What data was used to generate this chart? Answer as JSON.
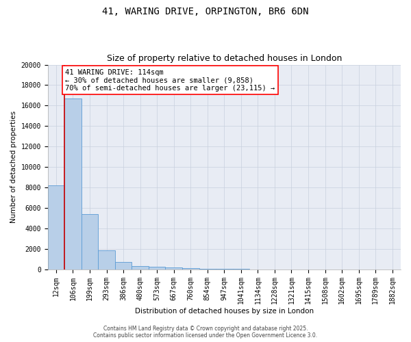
{
  "title_line1": "41, WARING DRIVE, ORPINGTON, BR6 6DN",
  "title_line2": "Size of property relative to detached houses in London",
  "xlabel": "Distribution of detached houses by size in London",
  "ylabel": "Number of detached properties",
  "bar_labels": [
    "12sqm",
    "106sqm",
    "199sqm",
    "293sqm",
    "386sqm",
    "480sqm",
    "573sqm",
    "667sqm",
    "760sqm",
    "854sqm",
    "947sqm",
    "1041sqm",
    "1134sqm",
    "1228sqm",
    "1321sqm",
    "1415sqm",
    "1508sqm",
    "1602sqm",
    "1695sqm",
    "1789sqm",
    "1882sqm"
  ],
  "bar_values": [
    8200,
    16700,
    5400,
    1850,
    700,
    320,
    250,
    175,
    130,
    50,
    20,
    10,
    5,
    5,
    3,
    3,
    2,
    2,
    1,
    1,
    1
  ],
  "bar_color": "#b8cfe8",
  "bar_edge_color": "#5b9bd5",
  "annotation_line1": "41 WARING DRIVE: 114sqm",
  "annotation_line2": "← 30% of detached houses are smaller (9,858)",
  "annotation_line3": "70% of semi-detached houses are larger (23,115) →",
  "vline_color": "#cc0000",
  "ylim": [
    0,
    20000
  ],
  "yticks": [
    0,
    2000,
    4000,
    6000,
    8000,
    10000,
    12000,
    14000,
    16000,
    18000,
    20000
  ],
  "grid_color": "#c8d0de",
  "bg_color": "#e8ecf4",
  "footer_line1": "Contains HM Land Registry data © Crown copyright and database right 2025.",
  "footer_line2": "Contains public sector information licensed under the Open Government Licence 3.0.",
  "title_fontsize": 10,
  "subtitle_fontsize": 9,
  "axis_label_fontsize": 7.5,
  "tick_fontsize": 7,
  "annotation_fontsize": 7.5,
  "footer_fontsize": 5.5
}
